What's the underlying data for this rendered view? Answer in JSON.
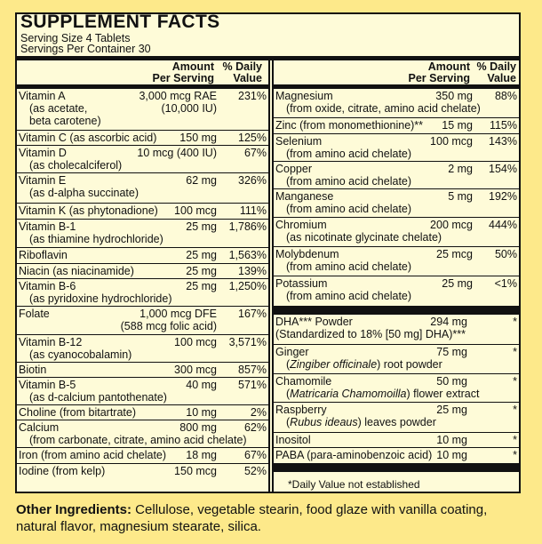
{
  "title": "SUPPLEMENT FACTS",
  "serving_size": "Serving Size 4 Tablets",
  "servings_per_container": "Servings Per Container 30",
  "headers": {
    "amount_1": "Amount",
    "amount_2": "Per Serving",
    "dv_1": "% Daily",
    "dv_2": "Value"
  },
  "left_rows": [
    {
      "n1": "Vitamin A",
      "n2": "(as acetate,",
      "n3": "beta carotene)",
      "a1": "3,000 mcg RAE",
      "a2": "(10,000 IU)",
      "dv": "231%"
    },
    {
      "n1": "Vitamin C (as ascorbic acid)",
      "a1": "150 mg",
      "dv": "125%"
    },
    {
      "n1": "Vitamin D",
      "n2": "(as cholecalciferol)",
      "a1": "10 mcg (400 IU)",
      "dv": "67%"
    },
    {
      "n1": "Vitamin E",
      "n2": "(as d-alpha succinate)",
      "a1": "62 mg",
      "dv": "326%"
    },
    {
      "n1": "Vitamin K (as phytonadione)",
      "a1": "100 mcg",
      "dv": "111%"
    },
    {
      "n1": "Vitamin B-1",
      "n2": "(as thiamine hydrochloride)",
      "a1": "25 mg",
      "dv": "1,786%"
    },
    {
      "n1": "Riboflavin",
      "a1": "25 mg",
      "dv": "1,563%"
    },
    {
      "n1": "Niacin (as niacinamide)",
      "a1": "25 mg",
      "dv": "139%"
    },
    {
      "n1": "Vitamin B-6",
      "n2": "(as pyridoxine hydrochloride)",
      "a1": "25 mg",
      "dv": "1,250%"
    },
    {
      "n1": "Folate",
      "a1": "1,000 mcg DFE",
      "a2": "(588 mcg folic acid)",
      "dv": "167%"
    },
    {
      "n1": "Vitamin B-12",
      "n2": "(as cyanocobalamin)",
      "a1": "100 mcg",
      "dv": "3,571%"
    },
    {
      "n1": "Biotin",
      "a1": "300 mcg",
      "dv": "857%"
    },
    {
      "n1": "Vitamin B-5",
      "n2": "(as d-calcium pantothenate)",
      "a1": "40 mg",
      "dv": "571%"
    },
    {
      "n1": "Choline (from bitartrate)",
      "a1": "10 mg",
      "dv": "2%"
    },
    {
      "n1": "Calcium",
      "n2": "(from carbonate, citrate, amino acid chelate)",
      "a1": "800 mg",
      "dv": "62%"
    },
    {
      "n1": "Iron (from amino acid chelate)",
      "a1": "18 mg",
      "dv": "67%"
    },
    {
      "n1": "Iodine (from kelp)",
      "a1": "150 mcg",
      "dv": "52%"
    }
  ],
  "right_rows": [
    {
      "n1": "Magnesium",
      "n2": "(from oxide, citrate, amino acid chelate)",
      "a1": "350 mg",
      "dv": "88%"
    },
    {
      "n1": "Zinc (from monomethionine)**",
      "a1": "15 mg",
      "dv": "115%"
    },
    {
      "n1": "Selenium",
      "n2": "(from amino acid chelate)",
      "a1": "100 mcg",
      "dv": "143%"
    },
    {
      "n1": "Copper",
      "n2": "(from amino acid chelate)",
      "a1": "2 mg",
      "dv": "154%"
    },
    {
      "n1": "Manganese",
      "n2": "(from amino acid chelate)",
      "a1": "5 mg",
      "dv": "192%"
    },
    {
      "n1": "Chromium",
      "n2": "(as nicotinate glycinate chelate)",
      "a1": "200 mcg",
      "dv": "444%"
    },
    {
      "n1": "Molybdenum",
      "n2": "(from amino acid chelate)",
      "a1": "25 mcg",
      "dv": "50%"
    },
    {
      "n1": "Potassium",
      "n2": "(from amino acid chelate)",
      "a1": "25 mg",
      "dv": "<1%"
    }
  ],
  "blend_rows": [
    {
      "n1": "DHA*** Powder",
      "n2": "(Standardized to 18% [50 mg] DHA)***",
      "a1": "294 mg",
      "dv": "*"
    },
    {
      "n1": "Ginger",
      "n2i": "Zingiber officinale",
      "n2r": ") root powder",
      "a1": "75 mg",
      "dv": "*"
    },
    {
      "n1": "Chamomile",
      "n2i": "Matricaria Chamomoilla",
      "n2r": ") flower extract",
      "a1": "50 mg",
      "dv": "*"
    },
    {
      "n1": "Raspberry",
      "n2i": "Rubus ideaus",
      "n2r": ") leaves powder",
      "a1": "25 mg",
      "dv": "*"
    },
    {
      "n1": "Inositol",
      "a1": "10 mg",
      "dv": "*"
    },
    {
      "n1": "PABA (para-aminobenzoic acid)",
      "a1": "10 mg",
      "dv": "*"
    }
  ],
  "footnote": "*Daily Value not established",
  "other_label": "Other Ingredients:",
  "other_text": " Cellulose, vegetable stearin, food glaze with vanilla coating, natural flavor, magnesium stearate, silica."
}
